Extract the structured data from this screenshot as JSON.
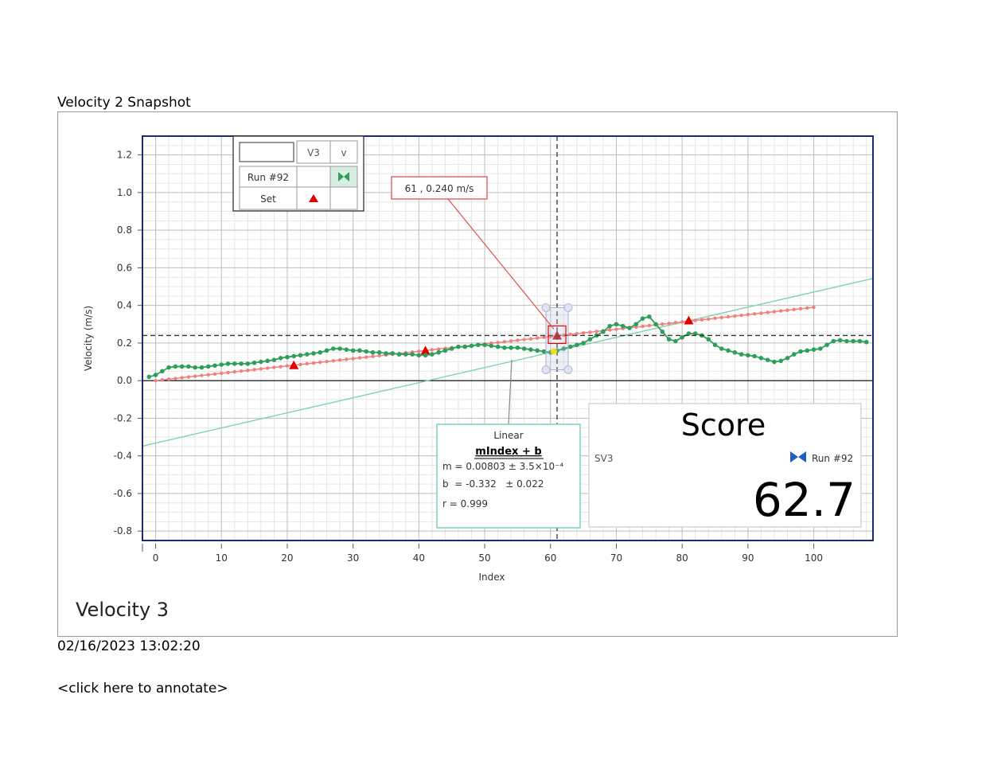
{
  "snapshot_title": "Velocity 2 Snapshot",
  "timestamp": "02/16/2023 13:02:20",
  "annotate_link": "<click here to annotate>",
  "graph_title": "Velocity 3",
  "legend": {
    "col_blank": "",
    "col_v3": "V3",
    "col_v": "v",
    "row_run": "Run #92",
    "row_set": "Set"
  },
  "tooltip": "61 , 0.240 m/s",
  "fit_box": {
    "title": "Linear",
    "equation": "mIndex + b",
    "m_line": "m = 0.00803 ± 3.5×10⁻⁴",
    "b_line": "b  = -0.332   ± 0.022",
    "r_line": "r = 0.999"
  },
  "score_box": {
    "title": "Score",
    "sensor": "SV3",
    "run_label": "Run #92",
    "value": "62.7"
  },
  "colors": {
    "run_series": "#2e9e5b",
    "set_series": "#f08080",
    "set_marker": "#e00000",
    "fit_line": "#7fd3a8",
    "frame_border": "#1e2a6e",
    "run_icon": "#1f5fbf"
  },
  "chart_data": {
    "type": "scatter",
    "xlabel": "Index",
    "ylabel": "Velocity (m/s)",
    "xlim": [
      -2,
      109
    ],
    "ylim": [
      -0.85,
      1.3
    ],
    "xticks": [
      0,
      10,
      20,
      30,
      40,
      50,
      60,
      70,
      80,
      90,
      100
    ],
    "yticks": [
      1.2,
      1.0,
      0.8,
      0.6,
      0.4,
      0.2,
      0.0,
      -0.2,
      -0.4,
      -0.6,
      -0.8
    ],
    "cursor": {
      "x": 61,
      "y": 0.24
    },
    "fit": {
      "m": 0.00803,
      "b": -0.332
    },
    "series": [
      {
        "name": "Run #92",
        "x": [
          -1,
          0,
          1,
          2,
          3,
          4,
          5,
          6,
          7,
          8,
          9,
          10,
          11,
          12,
          13,
          14,
          15,
          16,
          17,
          18,
          19,
          20,
          21,
          22,
          23,
          24,
          25,
          26,
          27,
          28,
          29,
          30,
          31,
          32,
          33,
          34,
          35,
          36,
          37,
          38,
          39,
          40,
          41,
          42,
          43,
          44,
          45,
          46,
          47,
          48,
          49,
          50,
          51,
          52,
          53,
          54,
          55,
          56,
          57,
          58,
          59,
          60,
          61,
          62,
          63,
          64,
          65,
          66,
          67,
          68,
          69,
          70,
          71,
          72,
          73,
          74,
          75,
          76,
          77,
          78,
          79,
          80,
          81,
          82,
          83,
          84,
          85,
          86,
          87,
          88,
          89,
          90,
          91,
          92,
          93,
          94,
          95,
          96,
          97,
          98,
          99,
          100,
          101,
          102,
          103,
          104,
          105,
          106,
          107,
          108
        ],
        "y": [
          0.02,
          0.03,
          0.05,
          0.07,
          0.075,
          0.075,
          0.075,
          0.07,
          0.07,
          0.075,
          0.08,
          0.085,
          0.09,
          0.09,
          0.09,
          0.09,
          0.095,
          0.1,
          0.105,
          0.11,
          0.12,
          0.125,
          0.13,
          0.135,
          0.14,
          0.145,
          0.15,
          0.16,
          0.17,
          0.17,
          0.165,
          0.16,
          0.16,
          0.155,
          0.15,
          0.15,
          0.145,
          0.145,
          0.14,
          0.14,
          0.14,
          0.135,
          0.135,
          0.14,
          0.15,
          0.16,
          0.17,
          0.18,
          0.18,
          0.185,
          0.19,
          0.19,
          0.185,
          0.18,
          0.175,
          0.175,
          0.175,
          0.17,
          0.165,
          0.16,
          0.155,
          0.15,
          0.16,
          0.17,
          0.18,
          0.19,
          0.2,
          0.22,
          0.24,
          0.26,
          0.29,
          0.3,
          0.29,
          0.28,
          0.3,
          0.33,
          0.34,
          0.3,
          0.26,
          0.22,
          0.21,
          0.23,
          0.25,
          0.25,
          0.24,
          0.22,
          0.19,
          0.17,
          0.16,
          0.15,
          0.14,
          0.135,
          0.13,
          0.12,
          0.11,
          0.1,
          0.105,
          0.12,
          0.14,
          0.155,
          0.16,
          0.165,
          0.17,
          0.19,
          0.21,
          0.215,
          0.21,
          0.21,
          0.21,
          0.205
        ]
      },
      {
        "name": "Set",
        "x_start": 0,
        "x_end": 100,
        "y_start": 0.0,
        "y_end": 0.39,
        "markers_x": [
          21,
          41,
          61,
          81
        ],
        "markers_y": [
          0.082,
          0.16,
          0.24,
          0.32
        ]
      }
    ]
  }
}
